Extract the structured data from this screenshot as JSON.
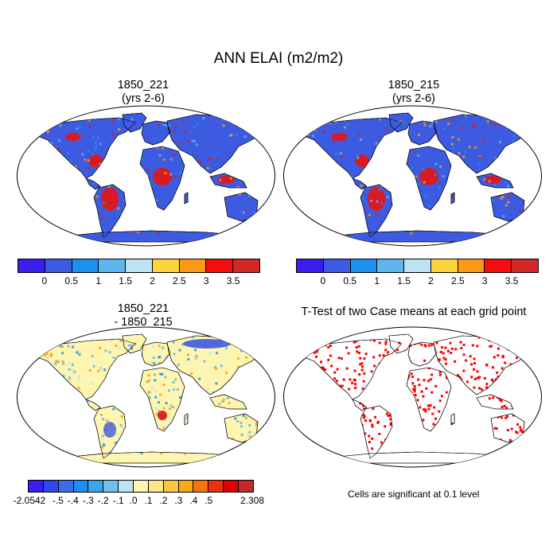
{
  "title": "ANN ELAI (m2/m2)",
  "panels": {
    "p1": {
      "title_line1": "1850_221",
      "title_line2": "(yrs 2-6)"
    },
    "p2": {
      "title_line1": "1850_215",
      "title_line2": "(yrs 2-6)"
    },
    "p3": {
      "title_line1": "1850_221",
      "title_line2": "- 1850_215"
    },
    "p4": {
      "title_line1": "T-Test of two Case means at each grid point"
    }
  },
  "colorbar_top": {
    "colors": [
      "#3a1df0",
      "#3d5be0",
      "#1c8ff0",
      "#5fb6ec",
      "#bde4f2",
      "#fbd43a",
      "#fb9a14",
      "#f70d0d",
      "#d42727"
    ],
    "labels": [
      "0",
      "0.5",
      "1",
      "1.5",
      "2",
      "2.5",
      "3",
      "3.5"
    ]
  },
  "colorbar_diff": {
    "colors": [
      "#3a1df0",
      "#2f47ef",
      "#3d6ce8",
      "#1c8ff0",
      "#3aa6ea",
      "#6fc0ee",
      "#bde4f2",
      "#fef6b0",
      "#fde58a",
      "#fcc840",
      "#fba81a",
      "#f87410",
      "#f0300c",
      "#dc0000",
      "#c42a2a"
    ],
    "labels": [
      "-2.0542",
      "-.5",
      "-.4",
      "-.3",
      "-.2",
      "-.1",
      ".0",
      ".1",
      ".2",
      ".3",
      ".4",
      ".5",
      "2.308"
    ]
  },
  "significance_note": "Cells are significant at 0.1 level",
  "map_colors": {
    "base": "#3d5be0",
    "ocean": "#ffffff",
    "coast": "#000000",
    "tropical": "#e01818",
    "warm": "#fb9a14",
    "mid": "#1c8ff0",
    "diff_base": "#fef6b0",
    "diff_cool": "#5fb6ec",
    "diff_warm": "#fb9a14",
    "sig": "#ff0000"
  }
}
